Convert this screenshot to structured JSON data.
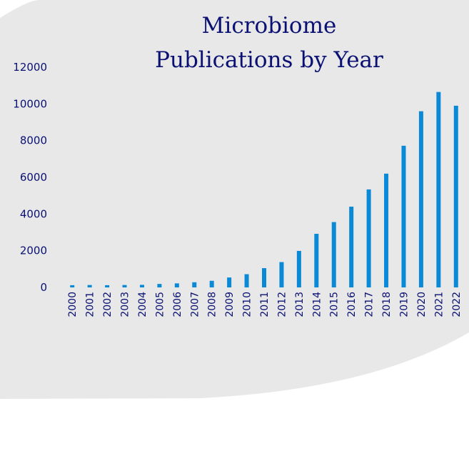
{
  "colors": {
    "background_blob": "#e8e8e8",
    "bar": "#0a8ad6",
    "text": "#0a1172"
  },
  "chart_data": {
    "type": "bar",
    "title_lines": [
      "Microbiome",
      "Publications by Year"
    ],
    "xlabel": "",
    "ylabel": "",
    "ylim": [
      0,
      12000
    ],
    "yticks": [
      0,
      2000,
      4000,
      6000,
      8000,
      10000,
      12000
    ],
    "grid": false,
    "legend": "none",
    "categories": [
      "2000",
      "2001",
      "2002",
      "2003",
      "2004",
      "2005",
      "2006",
      "2007",
      "2008",
      "2009",
      "2010",
      "2011",
      "2012",
      "2013",
      "2014",
      "2015",
      "2016",
      "2017",
      "2018",
      "2019",
      "2020",
      "2021",
      "2022"
    ],
    "values": [
      120,
      130,
      120,
      130,
      140,
      190,
      220,
      280,
      360,
      540,
      720,
      1050,
      1380,
      1990,
      2920,
      3560,
      4400,
      5340,
      6200,
      7720,
      9600,
      10650,
      9900
    ]
  }
}
